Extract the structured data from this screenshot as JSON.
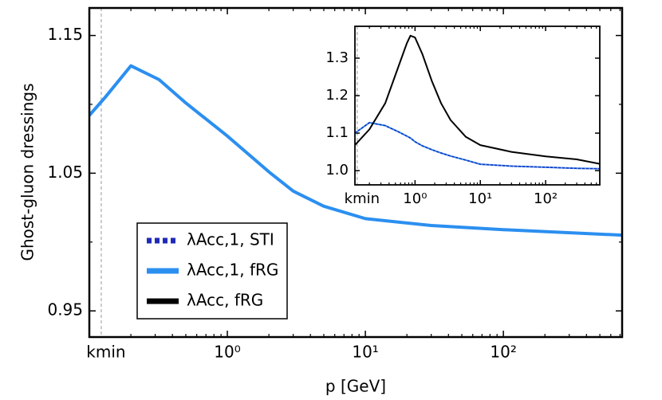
{
  "chart_data": [
    {
      "type": "line",
      "xlabel": "p [GeV]",
      "ylabel": "Ghost-gluon dressings",
      "xscale": "log",
      "xlim": [
        0.1,
        725
      ],
      "ylim": [
        0.931,
        1.17
      ],
      "xticks": [
        {
          "value": 0.122,
          "label": "kmin"
        },
        {
          "value": 1,
          "label": "10⁰"
        },
        {
          "value": 10,
          "label": "10¹"
        },
        {
          "value": 100,
          "label": "10²"
        }
      ],
      "yticks": [
        0.95,
        1.05,
        1.15
      ],
      "yminorticks": [
        1.0,
        1.1
      ],
      "x": [
        0.1,
        0.13,
        0.2,
        0.32,
        0.5,
        1,
        2,
        3,
        5,
        10,
        30,
        100,
        725
      ],
      "series": [
        {
          "name": "λAcc,1, STI",
          "color": "#1f2bb8",
          "style": "dashed",
          "values": [
            1.092,
            1.105,
            1.128,
            1.118,
            1.101,
            1.077,
            1.051,
            1.037,
            1.026,
            1.017,
            1.012,
            1.009,
            1.005
          ]
        },
        {
          "name": "λAcc,1, fRG",
          "color": "#2b8ff0",
          "style": "solid",
          "values": [
            1.092,
            1.105,
            1.128,
            1.118,
            1.101,
            1.077,
            1.051,
            1.037,
            1.026,
            1.017,
            1.012,
            1.009,
            1.005
          ]
        },
        {
          "name": "λAcc, fRG",
          "color": "#000000",
          "style": "solid",
          "values": [
            null,
            null,
            null,
            null,
            null,
            null,
            null,
            null,
            null,
            null,
            null,
            null,
            null
          ]
        }
      ],
      "legend": "lower left"
    },
    {
      "type": "line",
      "xscale": "log",
      "xlim": [
        0.12,
        676
      ],
      "ylim": [
        0.962,
        1.385
      ],
      "xticks": [
        {
          "value": 0.13,
          "label": "kmin"
        },
        {
          "value": 1,
          "label": "10⁰"
        },
        {
          "value": 10,
          "label": "10¹"
        },
        {
          "value": 100,
          "label": "10²"
        }
      ],
      "yticks": [
        {
          "value": 1.0,
          "label": "1.0"
        },
        {
          "value": 1.1,
          "label": "1.1"
        },
        {
          "value": 1.2,
          "label": "1.2"
        },
        {
          "value": 1.3,
          "label": "1.3"
        }
      ],
      "x": [
        0.12,
        0.2,
        0.35,
        0.55,
        0.75,
        0.85,
        1.0,
        1.3,
        1.8,
        2.5,
        3.5,
        6,
        10,
        30,
        100,
        300,
        676
      ],
      "series": [
        {
          "name": "λAcc,1, fRG",
          "color": "#2b8ff0",
          "style": "solid",
          "values": [
            1.1,
            1.128,
            1.12,
            1.104,
            1.092,
            1.087,
            1.077,
            1.066,
            1.056,
            1.047,
            1.039,
            1.028,
            1.017,
            1.012,
            1.009,
            1.006,
            1.005
          ]
        },
        {
          "name": "λAcc,1, STI",
          "color": "#1f2bb8",
          "style": "dashed",
          "values": [
            1.1,
            1.128,
            1.12,
            1.104,
            1.092,
            1.087,
            1.077,
            1.066,
            1.056,
            1.047,
            1.039,
            1.028,
            1.017,
            1.012,
            1.009,
            1.006,
            1.005
          ]
        },
        {
          "name": "λAcc, fRG",
          "color": "#000000",
          "style": "solid",
          "values": [
            1.068,
            1.11,
            1.18,
            1.275,
            1.34,
            1.36,
            1.355,
            1.31,
            1.24,
            1.18,
            1.135,
            1.09,
            1.068,
            1.05,
            1.038,
            1.03,
            1.018
          ]
        }
      ]
    }
  ]
}
